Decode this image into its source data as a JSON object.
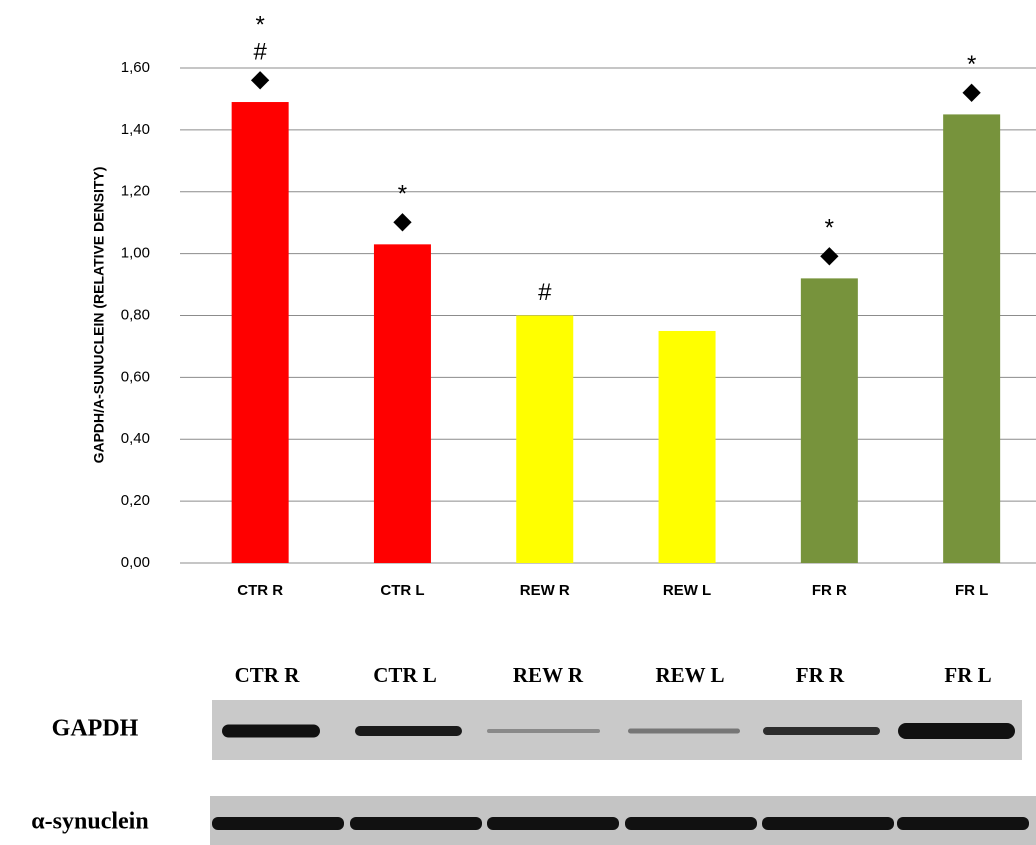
{
  "chart_data": {
    "type": "bar",
    "y_label": "GAPDH/A-SUNUCLEIN (RELATIVE DENSITY)",
    "categories": [
      "CTR R",
      "CTR L",
      "REW R",
      "REW L",
      "FR R",
      "FR L"
    ],
    "values": [
      1.49,
      1.03,
      0.8,
      0.75,
      0.92,
      1.45
    ],
    "colors": [
      "#ff0000",
      "#ff0000",
      "#ffff00",
      "#ffff00",
      "#77933c",
      "#77933c"
    ],
    "annotations": [
      [
        "◆",
        "#",
        "*"
      ],
      [
        "◆",
        "*"
      ],
      [
        "#"
      ],
      [],
      [
        "◆",
        "*"
      ],
      [
        "◆",
        "*"
      ]
    ],
    "ylim": [
      0,
      1.6
    ],
    "yticks": [
      {
        "value": 0,
        "label": "0,00"
      },
      {
        "value": 0.2,
        "label": "0,20"
      },
      {
        "value": 0.4,
        "label": "0,40"
      },
      {
        "value": 0.6,
        "label": "0,60"
      },
      {
        "value": 0.8,
        "label": "0,80"
      },
      {
        "value": 1.0,
        "label": "1,00"
      },
      {
        "value": 1.2,
        "label": "1,20"
      },
      {
        "value": 1.4,
        "label": "1,40"
      },
      {
        "value": 1.6,
        "label": "1,60"
      }
    ],
    "grid": true
  },
  "blot": {
    "lane_labels": [
      "CTR R",
      "CTR L",
      "REW R",
      "REW L",
      "FR R",
      "FR L"
    ],
    "rows": [
      "GAPDH",
      "α-synuclein"
    ]
  }
}
